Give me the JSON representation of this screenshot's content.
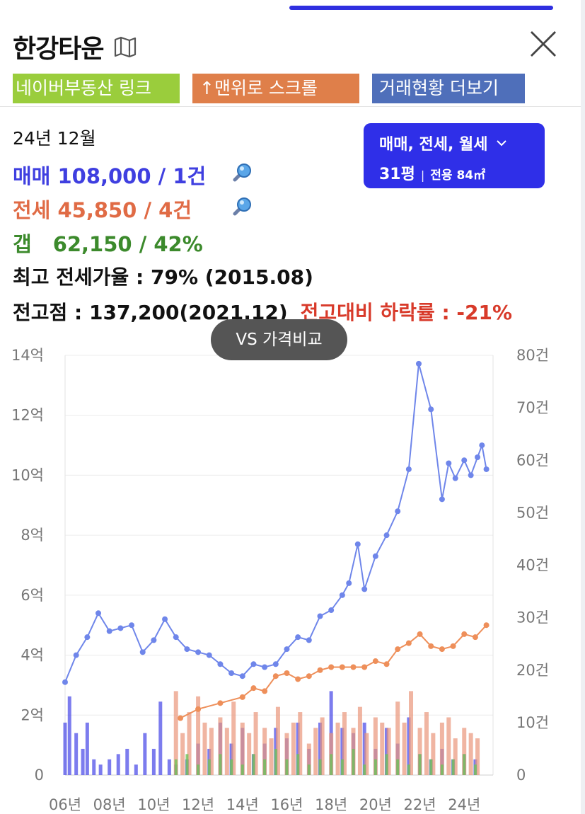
{
  "header": {
    "title": "한강타운"
  },
  "buttons": {
    "naver_link": "네이버부동산 링크",
    "scroll_top": "↑맨위로 스크롤",
    "more_trades": "거래현황 더보기"
  },
  "summary": {
    "date": "24년 12월",
    "sale": "매매 108,000 / 1건",
    "jeonse": "전세 45,850 / 4건",
    "gap_label": "갭",
    "gap_value": "62,150 / 42%",
    "max_ratio": "최고 전세가율 : 79% (2015.08)",
    "peak": "전고점 : 137,200(2021.12)",
    "drop": "전고대비 하락률 : -21%"
  },
  "filter": {
    "types": "매매, 전세, 월세",
    "size": "31평",
    "separator": "|",
    "area": "전용 84㎡"
  },
  "compare_button": "VS 가격비교",
  "colors": {
    "sale": "#3f3fe0",
    "jeonse": "#e06b45",
    "gap": "#3c8a2c",
    "drop": "#d83a2a",
    "filter_bg": "#2f2fe8",
    "sale_line": "#6f86ea",
    "jeonse_line": "#ee8f5a",
    "monthly_bar": "#6fc25a"
  },
  "chart_data": {
    "type": "line",
    "title": "",
    "x_ticks": [
      "06년",
      "08년",
      "10년",
      "12년",
      "14년",
      "16년",
      "18년",
      "20년",
      "22년",
      "24년"
    ],
    "y_left": {
      "ticks": [
        "0",
        "2억",
        "4억",
        "6억",
        "8억",
        "10억",
        "12억",
        "14억"
      ],
      "range": [
        0,
        14
      ]
    },
    "y_right": {
      "ticks": [
        "0",
        "10건",
        "20건",
        "30건",
        "40건",
        "50건",
        "60건",
        "70건",
        "80건"
      ],
      "range": [
        0,
        80
      ]
    },
    "grid": true,
    "series": [
      {
        "kind": "line",
        "axis": "left",
        "unit": "억",
        "x": [
          2006.0,
          2006.5,
          2007.0,
          2007.5,
          2008.0,
          2008.5,
          2009.0,
          2009.5,
          2010.0,
          2010.5,
          2011.0,
          2011.5,
          2012.0,
          2012.5,
          2013.0,
          2013.5,
          2014.0,
          2014.5,
          2015.0,
          2015.5,
          2016.0,
          2016.5,
          2017.0,
          2017.5,
          2018.0,
          2018.5,
          2018.8,
          2019.2,
          2019.5,
          2020.0,
          2020.5,
          2021.0,
          2021.5,
          2021.95,
          2022.5,
          2023.0,
          2023.3,
          2023.6,
          2024.0,
          2024.3,
          2024.6,
          2024.8,
          2025.0
        ],
        "values": [
          3.1,
          4.0,
          4.6,
          5.4,
          4.8,
          4.9,
          5.0,
          4.1,
          4.5,
          5.2,
          4.6,
          4.2,
          4.1,
          4.0,
          3.7,
          3.4,
          3.3,
          3.7,
          3.6,
          3.7,
          4.2,
          4.6,
          4.5,
          5.3,
          5.5,
          6.0,
          6.4,
          7.7,
          6.2,
          7.3,
          8.0,
          8.8,
          10.2,
          13.72,
          12.2,
          9.2,
          10.4,
          9.9,
          10.5,
          10.0,
          10.6,
          11.0,
          10.2
        ]
      },
      {
        "kind": "line",
        "axis": "left",
        "unit": "억",
        "x": [
          2011.2,
          2012.0,
          2013.0,
          2014.0,
          2014.5,
          2015.0,
          2015.5,
          2016.0,
          2016.5,
          2017.0,
          2017.5,
          2018.0,
          2018.5,
          2019.0,
          2019.5,
          2020.0,
          2020.5,
          2021.0,
          2021.5,
          2022.0,
          2022.5,
          2023.0,
          2023.5,
          2024.0,
          2024.5,
          2025.0
        ],
        "values": [
          1.9,
          2.2,
          2.4,
          2.6,
          2.9,
          2.8,
          3.3,
          3.4,
          3.2,
          3.3,
          3.5,
          3.6,
          3.6,
          3.6,
          3.6,
          3.8,
          3.7,
          4.2,
          4.4,
          4.7,
          4.3,
          4.2,
          4.3,
          4.7,
          4.6,
          5.0
        ]
      },
      {
        "kind": "bar",
        "axis": "right",
        "unit": "건",
        "comment": "sale volume (blue)",
        "x": [
          2006.0,
          2006.2,
          2006.5,
          2006.8,
          2007.0,
          2007.3,
          2007.6,
          2008.0,
          2008.4,
          2008.8,
          2009.2,
          2009.6,
          2010.0,
          2010.3,
          2010.7,
          2011.0,
          2011.5,
          2012.0,
          2012.5,
          2013.0,
          2013.5,
          2014.0,
          2014.5,
          2015.0,
          2015.5,
          2016.0,
          2016.5,
          2017.0,
          2017.5,
          2018.0,
          2018.5,
          2019.0,
          2019.5,
          2020.0,
          2020.5,
          2021.0,
          2021.5,
          2022.0,
          2022.5,
          2023.0,
          2023.5,
          2024.0,
          2024.5
        ],
        "values": [
          10,
          15,
          8,
          5,
          10,
          3,
          2,
          3,
          4,
          5,
          2,
          8,
          5,
          14,
          3,
          2,
          3,
          6,
          5,
          10,
          6,
          9,
          4,
          6,
          9,
          7,
          10,
          5,
          10,
          16,
          9,
          8,
          10,
          5,
          9,
          6,
          11,
          4,
          3,
          5,
          3,
          4,
          3
        ]
      },
      {
        "kind": "bar",
        "axis": "right",
        "unit": "건",
        "comment": "jeonse volume (orange)",
        "x": [
          2011.0,
          2011.3,
          2011.6,
          2012.0,
          2012.3,
          2012.6,
          2013.0,
          2013.3,
          2013.6,
          2014.0,
          2014.3,
          2014.6,
          2015.0,
          2015.3,
          2015.6,
          2016.0,
          2016.3,
          2016.6,
          2017.0,
          2017.3,
          2017.6,
          2018.0,
          2018.3,
          2018.6,
          2019.0,
          2019.3,
          2019.6,
          2020.0,
          2020.3,
          2020.6,
          2021.0,
          2021.3,
          2021.6,
          2022.0,
          2022.3,
          2022.6,
          2023.0,
          2023.3,
          2023.6,
          2024.0,
          2024.3,
          2024.6
        ],
        "values": [
          16,
          8,
          12,
          15,
          10,
          9,
          11,
          9,
          14,
          10,
          8,
          12,
          9,
          7,
          13,
          8,
          10,
          12,
          6,
          9,
          11,
          8,
          10,
          12,
          9,
          13,
          8,
          11,
          10,
          9,
          14,
          10,
          16,
          9,
          12,
          8,
          10,
          11,
          7,
          9,
          8,
          7
        ]
      },
      {
        "kind": "bar",
        "axis": "right",
        "unit": "건",
        "comment": "monthly-rent volume (green)",
        "x": [
          2011.0,
          2011.5,
          2012.0,
          2012.5,
          2013.0,
          2013.5,
          2014.0,
          2014.5,
          2015.0,
          2015.5,
          2016.0,
          2016.5,
          2017.0,
          2017.5,
          2018.0,
          2018.5,
          2019.0,
          2019.5,
          2020.0,
          2020.5,
          2021.0,
          2021.5,
          2022.0,
          2022.5,
          2023.0,
          2023.5,
          2024.0,
          2024.5
        ],
        "values": [
          3,
          4,
          2,
          3,
          4,
          3,
          2,
          4,
          3,
          5,
          3,
          4,
          2,
          3,
          4,
          3,
          5,
          2,
          3,
          4,
          3,
          2,
          4,
          3,
          2,
          3,
          4,
          2
        ]
      }
    ],
    "x_range": [
      2006.0,
      2025.3
    ]
  }
}
